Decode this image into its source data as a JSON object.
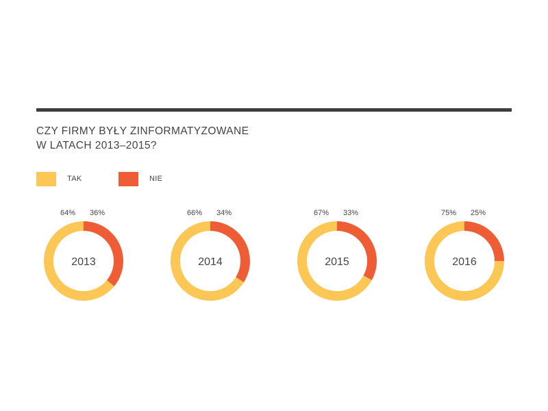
{
  "title": {
    "line1": "CZY FIRMY BYŁY ZINFORMATYZOWANE",
    "line2": "W LATACH 2013–2015?"
  },
  "legend": {
    "items": [
      {
        "label": "TAK",
        "color": "#FCC754"
      },
      {
        "label": "NIE",
        "color": "#EE5D35"
      }
    ]
  },
  "chart_data": {
    "type": "pie",
    "variant": "donut",
    "title": "CZY FIRMY BYŁY ZINFORMATYZOWANE W LATACH 2013–2015?",
    "series_names": [
      "TAK",
      "NIE"
    ],
    "colors": {
      "TAK": "#FCC754",
      "NIE": "#EE5D35",
      "background": "#FFFFFF"
    },
    "charts": [
      {
        "year": "2013",
        "TAK": 64,
        "NIE": 36,
        "tak_label": "64%",
        "nie_label": "36%"
      },
      {
        "year": "2014",
        "TAK": 66,
        "NIE": 34,
        "tak_label": "66%",
        "nie_label": "34%"
      },
      {
        "year": "2015",
        "TAK": 67,
        "NIE": 33,
        "tak_label": "67%",
        "nie_label": "33%"
      },
      {
        "year": "2016",
        "TAK": 75,
        "NIE": 25,
        "tak_label": "75%",
        "nie_label": "25%"
      }
    ]
  }
}
